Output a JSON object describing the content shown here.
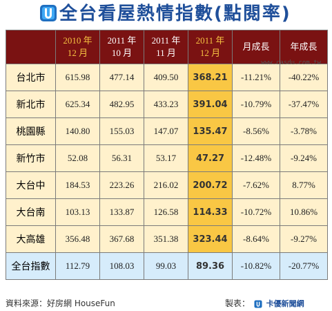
{
  "title": "全台看屋熱情指數(點閱率)",
  "watermark": "www.casdu.com.tw",
  "table": {
    "headers": [
      {
        "line1": "",
        "line2": ""
      },
      {
        "line1": "2010 年",
        "line2": "12 月"
      },
      {
        "line1": "2011 年",
        "line2": "10 月"
      },
      {
        "line1": "2011 年",
        "line2": "11 月"
      },
      {
        "line1": "2011 年",
        "line2": "12 月"
      },
      {
        "line1": "月成長",
        "line2": ""
      },
      {
        "line1": "年成長",
        "line2": ""
      }
    ],
    "rows": [
      {
        "region": "台北市",
        "v2010_12": "615.98",
        "v2011_10": "477.14",
        "v2011_11": "409.50",
        "v2011_12": "368.21",
        "mom": "-11.21%",
        "yoy": "-40.22%"
      },
      {
        "region": "新北市",
        "v2010_12": "625.34",
        "v2011_10": "482.95",
        "v2011_11": "433.23",
        "v2011_12": "391.04",
        "mom": "-10.79%",
        "yoy": "-37.47%"
      },
      {
        "region": "桃園縣",
        "v2010_12": "140.80",
        "v2011_10": "155.03",
        "v2011_11": "147.07",
        "v2011_12": "135.47",
        "mom": "-8.56%",
        "yoy": "-3.78%"
      },
      {
        "region": "新竹市",
        "v2010_12": "52.08",
        "v2011_10": "56.31",
        "v2011_11": "53.17",
        "v2011_12": "47.27",
        "mom": "-12.48%",
        "yoy": "-9.24%"
      },
      {
        "region": "大台中",
        "v2010_12": "184.53",
        "v2011_10": "223.26",
        "v2011_11": "216.02",
        "v2011_12": "200.72",
        "mom": "-7.62%",
        "yoy": "8.77%"
      },
      {
        "region": "大台南",
        "v2010_12": "103.13",
        "v2011_10": "133.87",
        "v2011_11": "126.58",
        "v2011_12": "114.33",
        "mom": "-10.72%",
        "yoy": "10.86%"
      },
      {
        "region": "大高雄",
        "v2010_12": "356.48",
        "v2011_10": "367.68",
        "v2011_11": "351.38",
        "v2011_12": "323.44",
        "mom": "-8.64%",
        "yoy": "-9.27%"
      }
    ],
    "total": {
      "region": "全台指數",
      "v2010_12": "112.79",
      "v2011_10": "108.03",
      "v2011_11": "99.03",
      "v2011_12": "89.36",
      "mom": "-10.82%",
      "yoy": "-20.77%"
    }
  },
  "footer": {
    "source": "資料來源：好房網 HouseFun",
    "made_by_label": "製表：",
    "brand": "卡優新聞網"
  },
  "colors": {
    "header_bg": "#7a1212",
    "highlight_col": "#f9c744",
    "cell_bg": "#fff1cc",
    "total_bg": "#d6ecfb",
    "title_color": "#1f4f9a"
  },
  "icons": {
    "title_logo": "card-u-logo-icon",
    "footer_logo": "card-u-logo-icon"
  }
}
